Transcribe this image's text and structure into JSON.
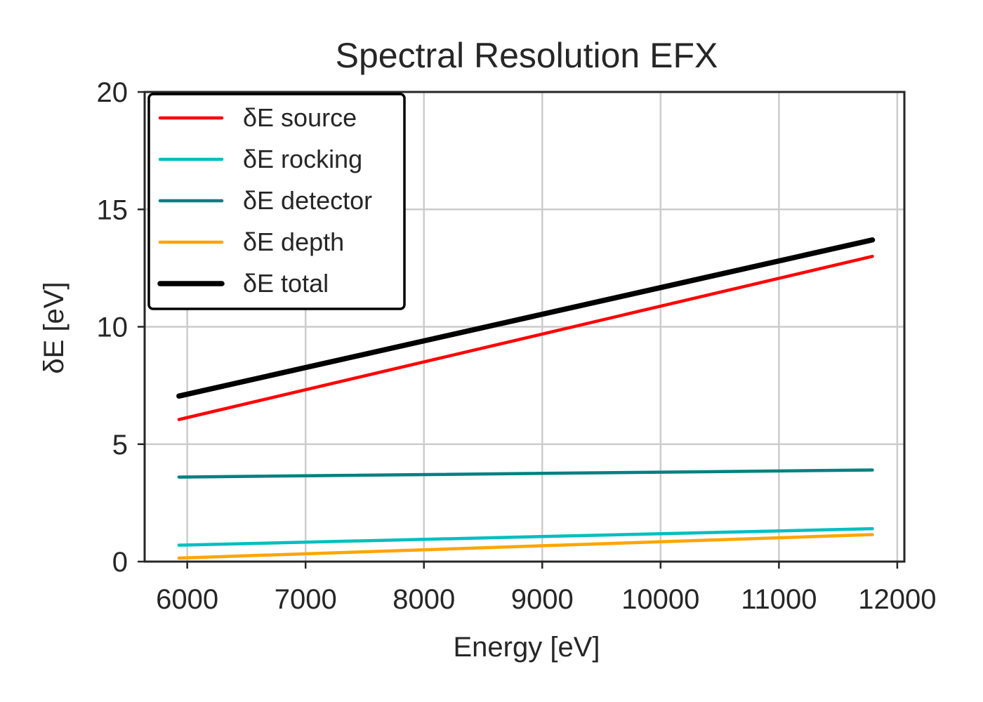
{
  "chart_data": {
    "type": "line",
    "title": "Spectral Resolution EFX",
    "xlabel": "Energy [eV]",
    "ylabel": "δE [eV]",
    "xlim": [
      5640,
      12060
    ],
    "ylim": [
      0,
      20
    ],
    "xticks": [
      6000,
      7000,
      8000,
      9000,
      10000,
      11000,
      12000
    ],
    "yticks": [
      0,
      5,
      10,
      15,
      20
    ],
    "grid": true,
    "legend_position": "top-left",
    "series": [
      {
        "name": "δE source",
        "color": "#ff0000",
        "x": [
          5930,
          11790
        ],
        "y": [
          6.05,
          13.0
        ]
      },
      {
        "name": "δE rocking",
        "color": "#00bfbf",
        "x": [
          5930,
          11790
        ],
        "y": [
          0.7,
          1.4
        ]
      },
      {
        "name": "δE detector",
        "color": "#008080",
        "x": [
          5930,
          11790
        ],
        "y": [
          3.6,
          3.9
        ]
      },
      {
        "name": "δE depth",
        "color": "#ffa500",
        "x": [
          5930,
          11790
        ],
        "y": [
          0.15,
          1.15
        ]
      },
      {
        "name": "δE total",
        "color": "#000000",
        "x": [
          5930,
          11790
        ],
        "y": [
          7.05,
          13.7
        ],
        "bold": true
      }
    ]
  }
}
